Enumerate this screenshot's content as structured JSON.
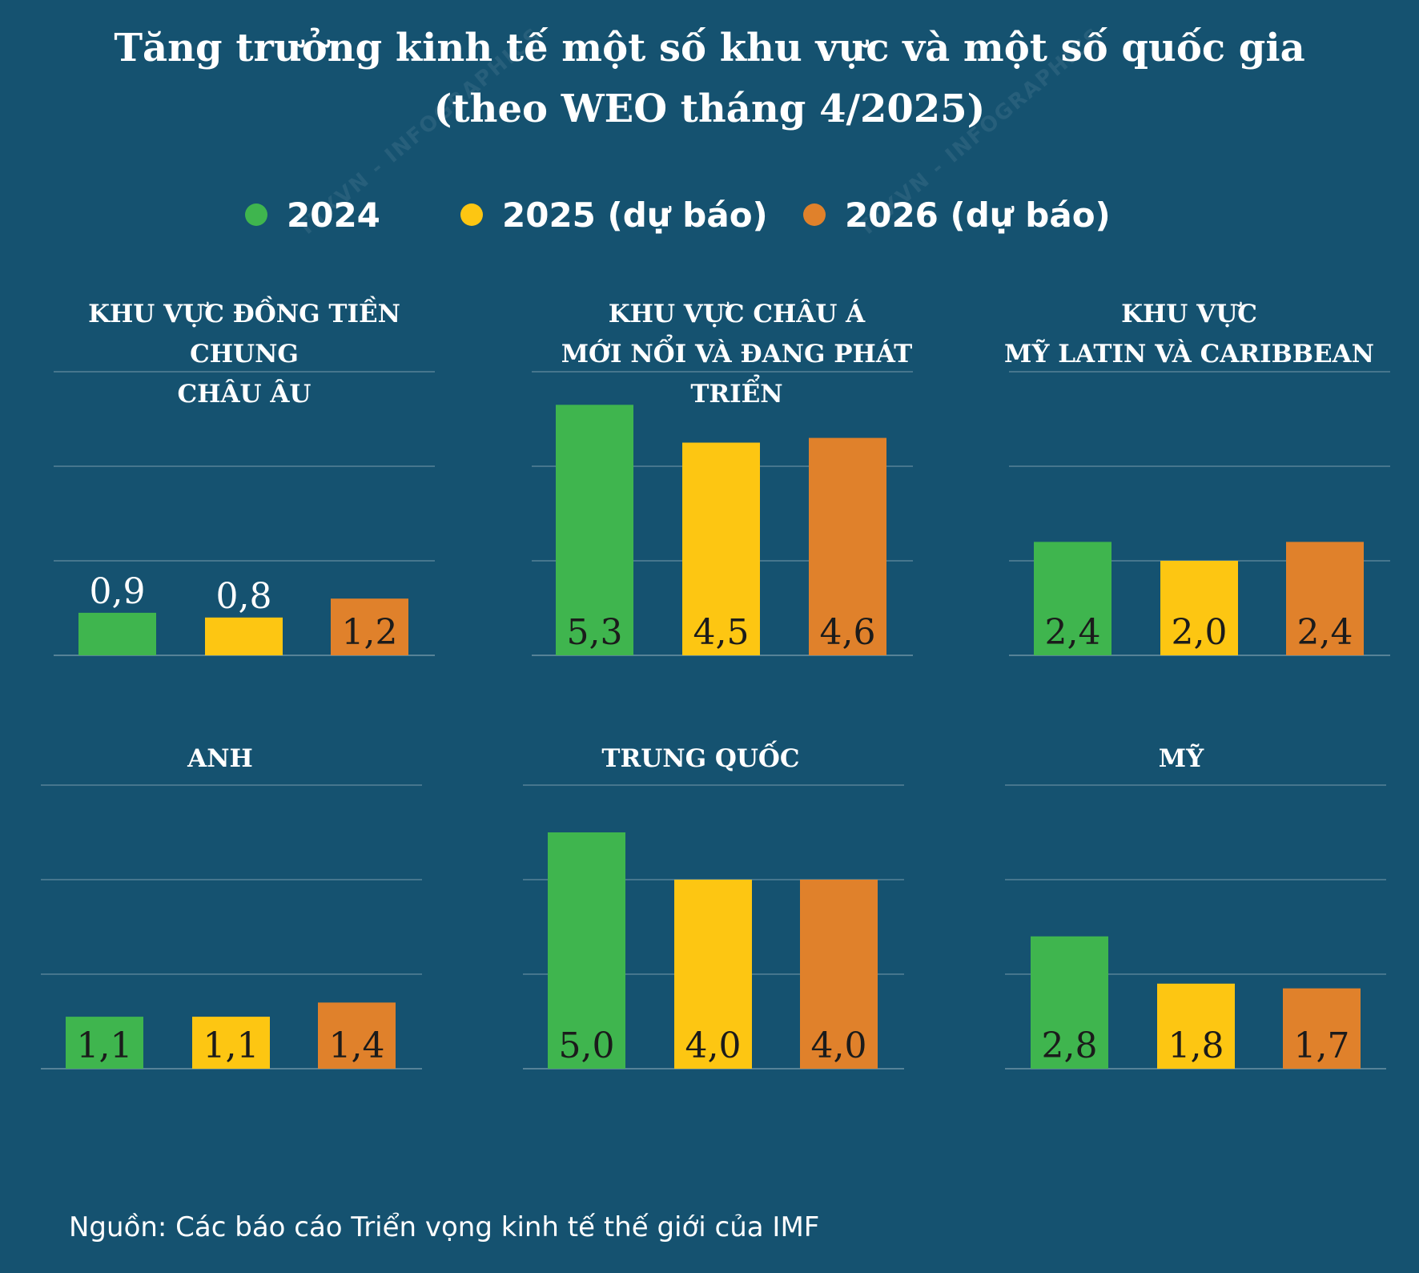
{
  "header": {
    "title_line1": "Tăng trưởng kinh tế một số khu vực và một số quốc gia",
    "title_line2": "(theo WEO tháng 4/2025)"
  },
  "legend": [
    {
      "label": "2024",
      "color": "#3fb54e"
    },
    {
      "label": "2025 (dự báo)",
      "color": "#fdc612"
    },
    {
      "label": "2026 (dự báo)",
      "color": "#e0812b"
    }
  ],
  "watermarks": [
    "TTXVN - INFOGRAPHICS",
    "TTXVN - INFOGRAPHICS"
  ],
  "chart_data": [
    {
      "type": "bar",
      "title_lines": [
        "KHU VỰC ĐỒNG TIỀN CHUNG",
        "CHÂU ÂU"
      ],
      "categories": [
        "2024",
        "2025 (dự báo)",
        "2026 (dự báo)"
      ],
      "values": [
        0.9,
        0.8,
        1.2
      ],
      "labels": [
        "0,9",
        "0,8",
        "1,2"
      ],
      "ylim": [
        0,
        6
      ],
      "grid": true
    },
    {
      "type": "bar",
      "title_lines": [
        "KHU VỰC CHÂU Á",
        "MỚI NỔI VÀ ĐANG PHÁT TRIỂN"
      ],
      "categories": [
        "2024",
        "2025 (dự báo)",
        "2026 (dự báo)"
      ],
      "values": [
        5.3,
        4.5,
        4.6
      ],
      "labels": [
        "5,3",
        "4,5",
        "4,6"
      ],
      "ylim": [
        0,
        6
      ],
      "grid": true
    },
    {
      "type": "bar",
      "title_lines": [
        "KHU VỰC",
        "MỸ LATIN VÀ CARIBBEAN"
      ],
      "categories": [
        "2024",
        "2025 (dự báo)",
        "2026 (dự báo)"
      ],
      "values": [
        2.4,
        2.0,
        2.4
      ],
      "labels": [
        "2,4",
        "2,0",
        "2,4"
      ],
      "ylim": [
        0,
        6
      ],
      "grid": true
    },
    {
      "type": "bar",
      "title_lines": [
        "ANH"
      ],
      "categories": [
        "2024",
        "2025 (dự báo)",
        "2026 (dự báo)"
      ],
      "values": [
        1.1,
        1.1,
        1.4
      ],
      "labels": [
        "1,1",
        "1,1",
        "1,4"
      ],
      "ylim": [
        0,
        6
      ],
      "grid": true
    },
    {
      "type": "bar",
      "title_lines": [
        "TRUNG QUỐC"
      ],
      "categories": [
        "2024",
        "2025 (dự báo)",
        "2026 (dự báo)"
      ],
      "values": [
        5.0,
        4.0,
        4.0
      ],
      "labels": [
        "5,0",
        "4,0",
        "4,0"
      ],
      "ylim": [
        0,
        6
      ],
      "grid": true
    },
    {
      "type": "bar",
      "title_lines": [
        "MỸ"
      ],
      "categories": [
        "2024",
        "2025 (dự báo)",
        "2026 (dự báo)"
      ],
      "values": [
        2.8,
        1.8,
        1.7
      ],
      "labels": [
        "2,8",
        "1,8",
        "1,7"
      ],
      "ylim": [
        0,
        6
      ],
      "grid": true
    }
  ],
  "footer": {
    "source": "Nguồn: Các báo cáo Triển vọng kinh tế thế giới của IMF"
  }
}
